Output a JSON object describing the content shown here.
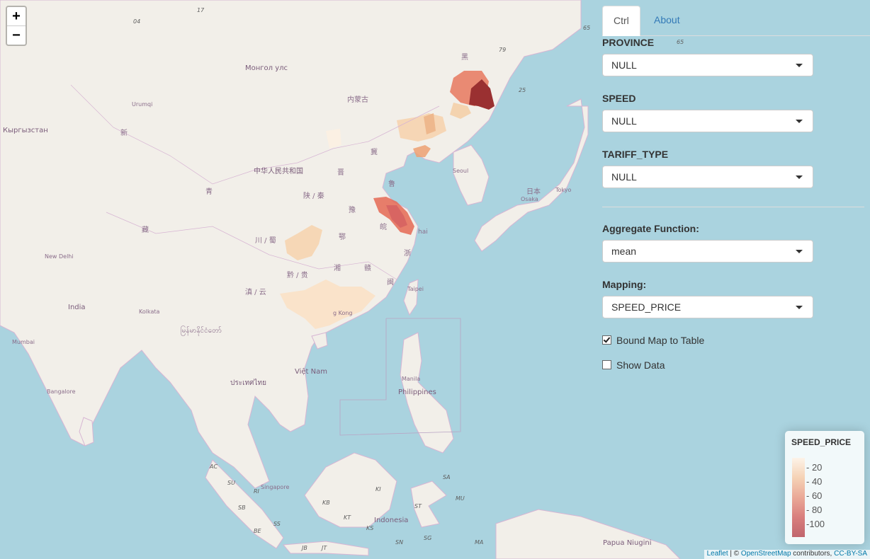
{
  "map": {
    "zoom_in": "+",
    "zoom_out": "−",
    "labels": {
      "mongolia": "Монгол улс",
      "kyrgyzstan": "Кыргызстан",
      "urumqi": "Urumqi",
      "xin": "新",
      "inner_mongolia": "内蒙古",
      "hei": "黑",
      "ji": "冀",
      "jin": "晋",
      "china": "中华人民共和国",
      "qing": "青",
      "shaanxi": "陕 / 秦",
      "lu": "鲁",
      "yu": "豫",
      "zang": "藏",
      "e": "鄂",
      "wan": "皖",
      "shanghai": "hai",
      "chuan": "川 / 蜀",
      "zhe": "浙",
      "xiang": "湘",
      "gan": "赣",
      "qian": "黔 / 贵",
      "min": "闽",
      "dian": "滇 / 云",
      "taipei": "Taipei",
      "hongkong": "g Kong",
      "seoul": "Seoul",
      "japan": "日本",
      "tokyo": "Tokyo",
      "osaka": "Osaka",
      "new_delhi": "New Delhi",
      "india": "India",
      "kolkata": "Kolkata",
      "mumbai": "Mumbai",
      "bangalore": "Bangalore",
      "myanmar": "မြန်မာနိုင်ငံတော်",
      "vietnam": "Việt Nam",
      "thailand": "ประเทศไทย",
      "philippines": "Philippines",
      "manila": "Manila",
      "singapore": "Singapore",
      "indonesia": "Indonesia",
      "papua": "Papua Niugini",
      "r65a": "65",
      "r65b": "65",
      "r79": "79",
      "r25": "25",
      "r17": "17",
      "r04": "04",
      "ac": "AC",
      "su": "SU",
      "ri": "RI",
      "sb": "SB",
      "be": "BE",
      "ss": "SS",
      "kb": "KB",
      "kt": "KT",
      "ki": "KI",
      "st": "ST",
      "mu": "MU",
      "sa": "SA",
      "ks": "KS",
      "jb": "JB",
      "jt": "JT",
      "sn": "SN",
      "sg": "SG",
      "ma": "MA"
    }
  },
  "tabs": {
    "ctrl": "Ctrl",
    "about": "About"
  },
  "filters": {
    "province_label": "PROVINCE",
    "province_value": "NULL",
    "speed_label": "SPEED",
    "speed_value": "NULL",
    "tariff_label": "TARIFF_TYPE",
    "tariff_value": "NULL"
  },
  "aggregate": {
    "label": "Aggregate Function:",
    "value": "mean"
  },
  "mapping": {
    "label": "Mapping:",
    "value": "SPEED_PRICE"
  },
  "options": {
    "bound_label": "Bound Map to Table",
    "bound_checked": true,
    "show_data_label": "Show Data",
    "show_data_checked": false
  },
  "legend": {
    "title": "SPEED_PRICE",
    "ticks": [
      "20",
      "40",
      "60",
      "80",
      "100"
    ],
    "colors": [
      "#fff2e4",
      "#f6c9a5",
      "#e8957f",
      "#d2605e",
      "#b4414a"
    ]
  },
  "attribution": {
    "leaflet": "Leaflet",
    "sep": " | © ",
    "osm": "OpenStreetMap",
    "contrib": " contributors, ",
    "license": "CC-BY-SA"
  }
}
